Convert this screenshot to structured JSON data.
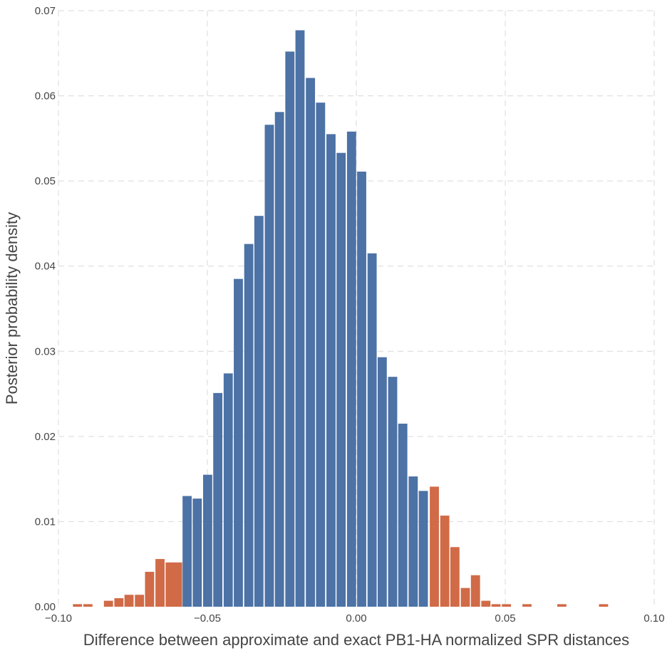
{
  "chart_data": {
    "type": "bar",
    "xlabel": "Difference between approximate and exact PB1-HA normalized SPR distances",
    "ylabel": "Posterior probability density",
    "xlim": [
      -0.1,
      0.1
    ],
    "ylim": [
      0.0,
      0.07
    ],
    "grid": true,
    "x_ticks": [
      "-0.10",
      "-0.05",
      "0.00",
      "0.05",
      "0.10"
    ],
    "y_ticks": [
      "0.00",
      "0.01",
      "0.02",
      "0.03",
      "0.04",
      "0.05",
      "0.06",
      "0.07"
    ],
    "bin_width": 0.00345,
    "colors": {
      "tail": "#d16a47",
      "center": "#4c72a6"
    },
    "series": [
      {
        "name": "tail",
        "bins": [
          {
            "x": -0.0936,
            "y": 0.0003
          },
          {
            "x": -0.0901,
            "y": 0.0003
          },
          {
            "x": -0.0832,
            "y": 0.0007
          },
          {
            "x": -0.0797,
            "y": 0.001
          },
          {
            "x": -0.0763,
            "y": 0.0014
          },
          {
            "x": -0.0728,
            "y": 0.0014
          },
          {
            "x": -0.0694,
            "y": 0.0041
          },
          {
            "x": -0.0659,
            "y": 0.0056
          },
          {
            "x": -0.0625,
            "y": 0.0052
          },
          {
            "x": -0.06,
            "y": 0.0052
          },
          {
            "x": 0.0262,
            "y": 0.0141
          },
          {
            "x": 0.0297,
            "y": 0.0107
          },
          {
            "x": 0.0331,
            "y": 0.007
          },
          {
            "x": 0.0366,
            "y": 0.0022
          },
          {
            "x": 0.04,
            "y": 0.0037
          },
          {
            "x": 0.0435,
            "y": 0.0007
          },
          {
            "x": 0.0469,
            "y": 0.0003
          },
          {
            "x": 0.0504,
            "y": 0.0003
          },
          {
            "x": 0.0573,
            "y": 0.0003
          },
          {
            "x": 0.069,
            "y": 0.0003
          },
          {
            "x": 0.083,
            "y": 0.0003
          }
        ]
      },
      {
        "name": "center",
        "bins": [
          {
            "x": -0.0568,
            "y": 0.013
          },
          {
            "x": -0.0534,
            "y": 0.0127
          },
          {
            "x": -0.0499,
            "y": 0.0155
          },
          {
            "x": -0.0465,
            "y": 0.0251
          },
          {
            "x": -0.043,
            "y": 0.0274
          },
          {
            "x": -0.0396,
            "y": 0.0385
          },
          {
            "x": -0.0361,
            "y": 0.0426
          },
          {
            "x": -0.0327,
            "y": 0.0459
          },
          {
            "x": -0.0292,
            "y": 0.0566
          },
          {
            "x": -0.0258,
            "y": 0.0581
          },
          {
            "x": -0.0223,
            "y": 0.0652
          },
          {
            "x": -0.0189,
            "y": 0.0677
          },
          {
            "x": -0.0154,
            "y": 0.0621
          },
          {
            "x": -0.012,
            "y": 0.0592
          },
          {
            "x": -0.0085,
            "y": 0.0555
          },
          {
            "x": -0.0051,
            "y": 0.0533
          },
          {
            "x": -0.0016,
            "y": 0.0558
          },
          {
            "x": 0.0018,
            "y": 0.0511
          },
          {
            "x": 0.0053,
            "y": 0.0415
          },
          {
            "x": 0.0087,
            "y": 0.0293
          },
          {
            "x": 0.0122,
            "y": 0.027
          },
          {
            "x": 0.0156,
            "y": 0.0215
          },
          {
            "x": 0.0191,
            "y": 0.0153
          },
          {
            "x": 0.0225,
            "y": 0.0136
          }
        ]
      }
    ]
  }
}
